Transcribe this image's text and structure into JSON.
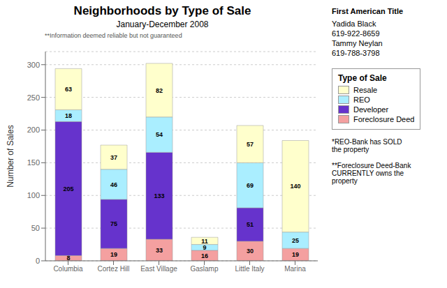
{
  "chart_data": {
    "type": "bar",
    "stacked": true,
    "title": "Neighborhoods by Type of Sale",
    "subtitle": "January-December 2008",
    "footnote": "**Information deemed reliable but not guaranteed",
    "ylabel": "Number of Sales",
    "categories": [
      "Columbia",
      "Cortez Hill",
      "East Village",
      "Gaslamp",
      "Little Italy",
      "Marina"
    ],
    "series": [
      {
        "name": "Foreclosure Deed",
        "color": "#F4A0A0",
        "values": [
          8,
          19,
          33,
          16,
          30,
          19
        ]
      },
      {
        "name": "Developer",
        "color": "#6633CC",
        "values": [
          205,
          75,
          133,
          0,
          51,
          0
        ]
      },
      {
        "name": "REO",
        "color": "#AAEEFF",
        "values": [
          18,
          46,
          54,
          9,
          69,
          25
        ]
      },
      {
        "name": "Resale",
        "color": "#FFFFCC",
        "values": [
          63,
          37,
          82,
          11,
          57,
          140
        ]
      }
    ],
    "ylim": [
      0,
      320
    ],
    "yticks": [
      0,
      50,
      100,
      150,
      200,
      250,
      300
    ],
    "grid": true,
    "data_labels": true,
    "legend": "right",
    "legend_title": "Type of Sale",
    "annotations": [
      "First American Title",
      "Yadida Black",
      "619-922-8659",
      "Tammy Neylan",
      "619-788-3798",
      "*REO-Bank has SOLD\nthe property",
      "**Foreclosure Deed-Bank\nCURRENTLY owns the\nproperty"
    ]
  }
}
